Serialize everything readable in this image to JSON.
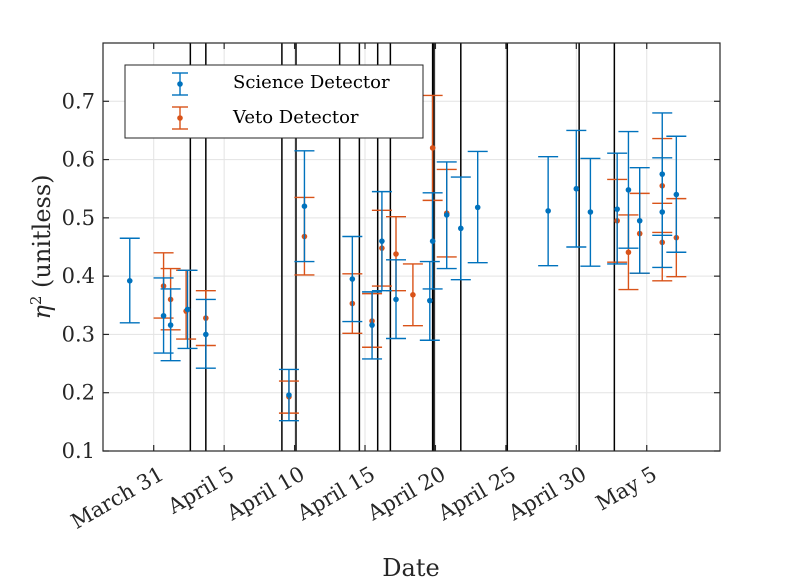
{
  "chart_data": {
    "type": "scatter",
    "title": "",
    "xlabel": "Date",
    "ylabel": "η² (unitless)",
    "ylabel_base": "η",
    "ylabel_sup": "2",
    "ylabel_rest": " (unitless)",
    "xlim": [
      -3.6,
      40.2
    ],
    "ylim": [
      0.1,
      0.8
    ],
    "yticks": [
      0.1,
      0.2,
      0.3,
      0.4,
      0.5,
      0.6,
      0.7
    ],
    "ytick_labels": [
      "0.1",
      "0.2",
      "0.3",
      "0.4",
      "0.5",
      "0.6",
      "0.7"
    ],
    "xticks": [
      0,
      5,
      10,
      15,
      20,
      25,
      30,
      35
    ],
    "xtick_labels": [
      "March 31",
      "April 5",
      "April 10",
      "April 15",
      "April 20",
      "April 25",
      "April 30",
      "May 5"
    ],
    "grid": true,
    "legend_position": "top-left",
    "colors": {
      "science": "#0072BD",
      "veto": "#D95319",
      "vlines": "#000000",
      "axis": "#262626",
      "grid": "#e3e3e3"
    },
    "vertical_lines": [
      2.6,
      3.7,
      9.1,
      10.1,
      13.2,
      14.6,
      15.9,
      16.8,
      19.8,
      19.9,
      21.8,
      25.1,
      30.2,
      32.7
    ],
    "series": [
      {
        "name": "Science Detector",
        "color": "#0072BD",
        "points": [
          {
            "x": -1.7,
            "y": 0.392,
            "lo": 0.32,
            "hi": 0.465
          },
          {
            "x": 0.7,
            "y": 0.332,
            "lo": 0.268,
            "hi": 0.397
          },
          {
            "x": 1.2,
            "y": 0.316,
            "lo": 0.255,
            "hi": 0.378
          },
          {
            "x": 2.4,
            "y": 0.343,
            "lo": 0.276,
            "hi": 0.41
          },
          {
            "x": 3.7,
            "y": 0.3,
            "lo": 0.242,
            "hi": 0.36
          },
          {
            "x": 9.6,
            "y": 0.196,
            "lo": 0.152,
            "hi": 0.24
          },
          {
            "x": 10.7,
            "y": 0.52,
            "lo": 0.425,
            "hi": 0.615
          },
          {
            "x": 14.1,
            "y": 0.395,
            "lo": 0.322,
            "hi": 0.468
          },
          {
            "x": 15.5,
            "y": 0.316,
            "lo": 0.258,
            "hi": 0.373
          },
          {
            "x": 16.2,
            "y": 0.46,
            "lo": 0.375,
            "hi": 0.545
          },
          {
            "x": 17.2,
            "y": 0.36,
            "lo": 0.293,
            "hi": 0.428
          },
          {
            "x": 19.6,
            "y": 0.358,
            "lo": 0.29,
            "hi": 0.425
          },
          {
            "x": 19.8,
            "y": 0.46,
            "lo": 0.378,
            "hi": 0.543
          },
          {
            "x": 20.8,
            "y": 0.505,
            "lo": 0.413,
            "hi": 0.596
          },
          {
            "x": 21.8,
            "y": 0.482,
            "lo": 0.394,
            "hi": 0.57
          },
          {
            "x": 23.0,
            "y": 0.518,
            "lo": 0.423,
            "hi": 0.614
          },
          {
            "x": 28.0,
            "y": 0.512,
            "lo": 0.418,
            "hi": 0.605
          },
          {
            "x": 30.0,
            "y": 0.55,
            "lo": 0.45,
            "hi": 0.65
          },
          {
            "x": 31.0,
            "y": 0.51,
            "lo": 0.417,
            "hi": 0.602
          },
          {
            "x": 32.9,
            "y": 0.515,
            "lo": 0.421,
            "hi": 0.611
          },
          {
            "x": 33.7,
            "y": 0.548,
            "lo": 0.448,
            "hi": 0.648
          },
          {
            "x": 34.5,
            "y": 0.495,
            "lo": 0.405,
            "hi": 0.586
          },
          {
            "x": 36.1,
            "y": 0.575,
            "lo": 0.47,
            "hi": 0.68
          },
          {
            "x": 36.1,
            "y": 0.51,
            "lo": 0.415,
            "hi": 0.603
          },
          {
            "x": 37.1,
            "y": 0.54,
            "lo": 0.441,
            "hi": 0.64
          }
        ]
      },
      {
        "name": "Veto Detector",
        "color": "#D95319",
        "points": [
          {
            "x": 0.7,
            "y": 0.383,
            "lo": 0.328,
            "hi": 0.44
          },
          {
            "x": 1.2,
            "y": 0.36,
            "lo": 0.308,
            "hi": 0.413
          },
          {
            "x": 2.3,
            "y": 0.34,
            "lo": 0.292,
            "hi": 0.41
          },
          {
            "x": 3.7,
            "y": 0.328,
            "lo": 0.281,
            "hi": 0.375
          },
          {
            "x": 9.6,
            "y": 0.193,
            "lo": 0.165,
            "hi": 0.22
          },
          {
            "x": 10.7,
            "y": 0.468,
            "lo": 0.402,
            "hi": 0.535
          },
          {
            "x": 14.1,
            "y": 0.353,
            "lo": 0.302,
            "hi": 0.404
          },
          {
            "x": 15.5,
            "y": 0.323,
            "lo": 0.278,
            "hi": 0.37
          },
          {
            "x": 16.2,
            "y": 0.448,
            "lo": 0.383,
            "hi": 0.513
          },
          {
            "x": 17.2,
            "y": 0.438,
            "lo": 0.375,
            "hi": 0.502
          },
          {
            "x": 18.4,
            "y": 0.368,
            "lo": 0.315,
            "hi": 0.421
          },
          {
            "x": 19.8,
            "y": 0.62,
            "lo": 0.53,
            "hi": 0.71
          },
          {
            "x": 20.8,
            "y": 0.508,
            "lo": 0.433,
            "hi": 0.583
          },
          {
            "x": 32.9,
            "y": 0.495,
            "lo": 0.424,
            "hi": 0.566
          },
          {
            "x": 33.7,
            "y": 0.441,
            "lo": 0.377,
            "hi": 0.505
          },
          {
            "x": 34.5,
            "y": 0.473,
            "lo": 0.405,
            "hi": 0.542
          },
          {
            "x": 36.1,
            "y": 0.555,
            "lo": 0.475,
            "hi": 0.636
          },
          {
            "x": 36.1,
            "y": 0.458,
            "lo": 0.392,
            "hi": 0.525
          },
          {
            "x": 37.1,
            "y": 0.466,
            "lo": 0.399,
            "hi": 0.533
          }
        ]
      }
    ]
  }
}
